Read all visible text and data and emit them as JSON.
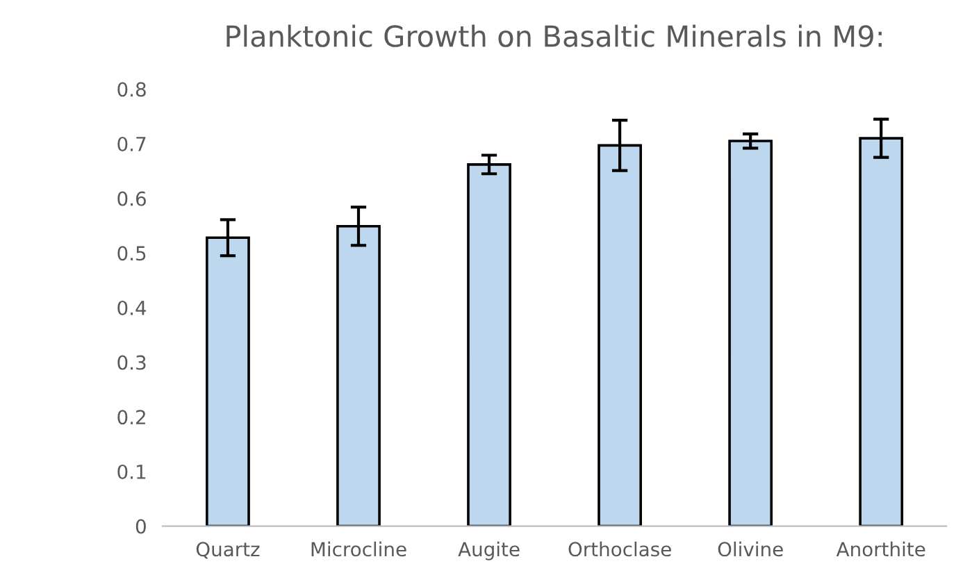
{
  "chart_data": {
    "type": "bar",
    "title": "Planktonic Growth on Basaltic Minerals in M9:",
    "categories": [
      "Quartz",
      "Microcline",
      "Augite",
      "Orthoclase",
      "Olivine",
      "Anorthite"
    ],
    "series": [
      {
        "color": "#bdd7ee",
        "values": [
          0.528,
          0.549,
          0.662,
          0.697,
          0.705,
          0.71
        ],
        "errors": [
          0.033,
          0.035,
          0.017,
          0.046,
          0.013,
          0.035
        ]
      }
    ],
    "ylim": [
      0,
      0.8
    ],
    "yticks": [
      {
        "value": 0,
        "label": "0"
      },
      0.1,
      0.2,
      0.3,
      0.4,
      0.5,
      0.6,
      0.7,
      0.8
    ],
    "grid": false
  }
}
